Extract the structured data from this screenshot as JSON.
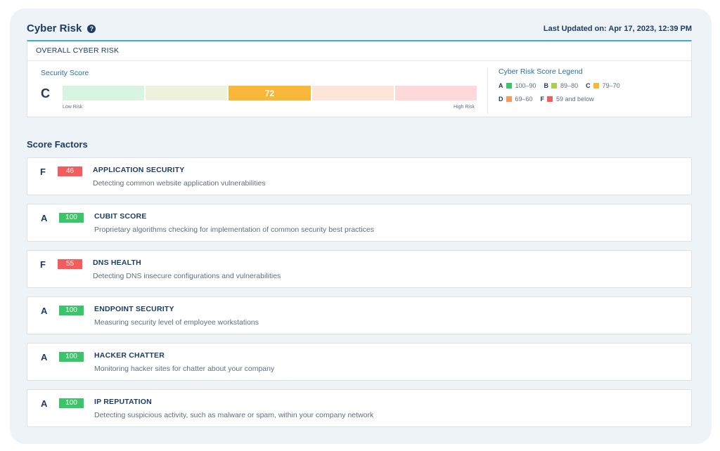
{
  "header": {
    "title": "Cyber Risk",
    "help_glyph": "?",
    "last_updated": "Last Updated on: Apr 17, 2023, 12:39 PM"
  },
  "overall": {
    "heading": "OVERALL CYBER RISK",
    "score_label": "Security Score",
    "grade": "C",
    "score": 72,
    "low_label": "Low Risk",
    "high_label": "High Risk",
    "segments": [
      {
        "color": "#d8f5e2",
        "active": false
      },
      {
        "color": "#eef2dc",
        "active": false
      },
      {
        "color": "#f7b83a",
        "active": true
      },
      {
        "color": "#fde5d9",
        "active": false
      },
      {
        "color": "#fdd9d9",
        "active": false
      }
    ]
  },
  "legend": {
    "title": "Cyber Risk Score Legend",
    "rows": [
      [
        {
          "letter": "A",
          "range": "100–90",
          "color": "#3cc46a"
        },
        {
          "letter": "B",
          "range": "89–80",
          "color": "#a8cf52"
        },
        {
          "letter": "C",
          "range": "79–70",
          "color": "#f7b83a"
        }
      ],
      [
        {
          "letter": "D",
          "range": "69–60",
          "color": "#f59a5a"
        },
        {
          "letter": "F",
          "range": "59 and below",
          "color": "#f25c5c"
        }
      ]
    ]
  },
  "factors_title": "Score Factors",
  "factors": [
    {
      "grade": "F",
      "score": "46",
      "color": "#f25c5c",
      "name": "APPLICATION SECURITY",
      "desc": "Detecting common website application vulnerabilities"
    },
    {
      "grade": "A",
      "score": "100",
      "color": "#3cc46a",
      "name": "CUBIT SCORE",
      "desc": "Proprietary algorithms checking for implementation of common security best practices"
    },
    {
      "grade": "F",
      "score": "55",
      "color": "#f25c5c",
      "name": "DNS HEALTH",
      "desc": "Detecting DNS insecure configurations and vulnerabilities"
    },
    {
      "grade": "A",
      "score": "100",
      "color": "#3cc46a",
      "name": "ENDPOINT SECURITY",
      "desc": "Measuring security level of employee workstations"
    },
    {
      "grade": "A",
      "score": "100",
      "color": "#3cc46a",
      "name": "HACKER CHATTER",
      "desc": "Monitoring hacker sites for chatter about your company"
    },
    {
      "grade": "A",
      "score": "100",
      "color": "#3cc46a",
      "name": "IP REPUTATION",
      "desc": "Detecting suspicious activity, such as malware or spam, within your company network"
    }
  ]
}
